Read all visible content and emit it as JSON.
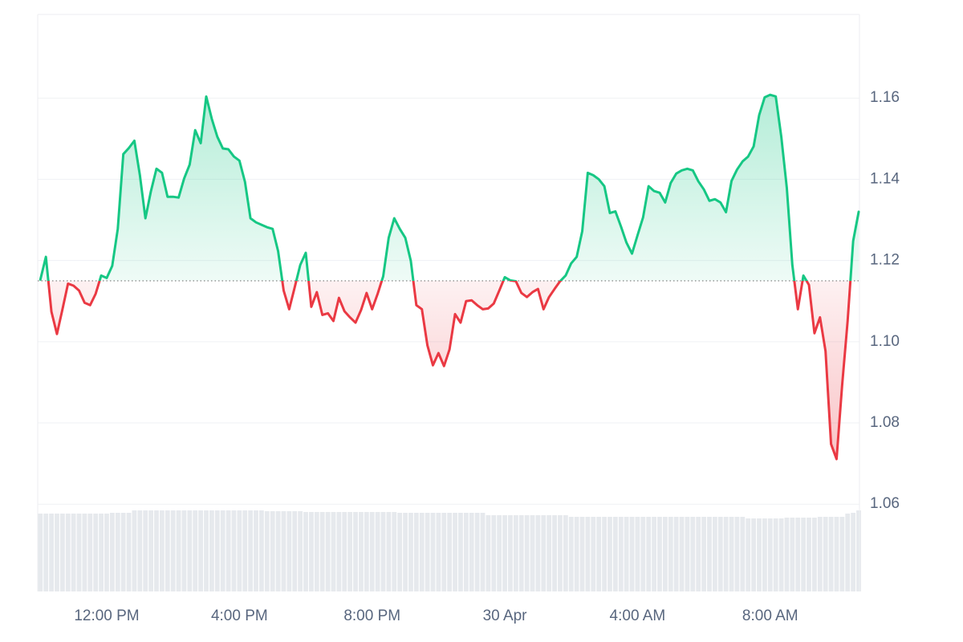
{
  "chart_data": {
    "type": "line",
    "up_color": "#16c784",
    "down_color": "#ea3943",
    "volume_color": "#e6e9ed",
    "baseline": 1.115,
    "ylim": [
      1.0385,
      1.1806
    ],
    "yticks": [
      1.06,
      1.08,
      {
        "value": 1.1,
        "label": "1.10"
      },
      1.12,
      1.14,
      1.16
    ],
    "grid": true,
    "categories": [
      null,
      null,
      null,
      null,
      null,
      null,
      null,
      null,
      null,
      null,
      null,
      null,
      "12:00 PM",
      null,
      null,
      null,
      null,
      null,
      null,
      null,
      null,
      null,
      null,
      null,
      null,
      null,
      null,
      null,
      null,
      null,
      null,
      null,
      null,
      null,
      null,
      null,
      "4:00 PM",
      null,
      null,
      null,
      null,
      null,
      null,
      null,
      null,
      null,
      null,
      null,
      null,
      null,
      null,
      null,
      null,
      null,
      null,
      null,
      null,
      null,
      null,
      null,
      "8:00 PM",
      null,
      null,
      null,
      null,
      null,
      null,
      null,
      null,
      null,
      null,
      null,
      null,
      null,
      null,
      null,
      null,
      null,
      null,
      null,
      null,
      null,
      null,
      null,
      "30 Apr",
      null,
      null,
      null,
      null,
      null,
      null,
      null,
      null,
      null,
      null,
      null,
      null,
      null,
      null,
      null,
      null,
      null,
      null,
      null,
      null,
      null,
      null,
      null,
      "4:00 AM",
      null,
      null,
      null,
      null,
      null,
      null,
      null,
      null,
      null,
      null,
      null,
      null,
      null,
      null,
      null,
      null,
      null,
      null,
      null,
      null,
      null,
      null,
      null,
      "8:00 AM",
      null,
      null,
      null,
      null,
      null,
      null,
      null,
      null,
      null,
      null,
      null,
      null,
      null,
      null,
      null,
      null
    ],
    "values": [
      1.1153,
      1.1209,
      1.1074,
      1.1019,
      1.108,
      1.1143,
      1.1138,
      1.1126,
      1.1096,
      1.109,
      1.1118,
      1.1163,
      1.1157,
      1.1187,
      1.1278,
      1.1462,
      1.1477,
      1.1495,
      1.141,
      1.1304,
      1.1371,
      1.1426,
      1.1416,
      1.1357,
      1.1357,
      1.1355,
      1.1402,
      1.1436,
      1.1521,
      1.1489,
      1.1604,
      1.1549,
      1.1505,
      1.1476,
      1.1474,
      1.1456,
      1.1446,
      1.1394,
      1.1304,
      1.1294,
      1.1288,
      1.1282,
      1.1278,
      1.1223,
      1.1126,
      1.108,
      1.1134,
      1.1189,
      1.1219,
      1.1086,
      1.1122,
      1.1066,
      1.107,
      1.1051,
      1.1108,
      1.1075,
      1.106,
      1.1047,
      1.1078,
      1.112,
      1.108,
      1.1118,
      1.1161,
      1.1256,
      1.1304,
      1.1278,
      1.1256,
      1.1199,
      1.109,
      1.108,
      1.0991,
      1.0942,
      1.0972,
      1.094,
      1.0981,
      1.1068,
      1.1047,
      1.11,
      1.1102,
      1.109,
      1.108,
      1.1082,
      1.1094,
      1.1126,
      1.1159,
      1.1151,
      1.1149,
      1.112,
      1.111,
      1.1122,
      1.113,
      1.108,
      1.111,
      1.113,
      1.1149,
      1.1163,
      1.1193,
      1.1209,
      1.1272,
      1.1416,
      1.141,
      1.14,
      1.1383,
      1.1317,
      1.1321,
      1.1284,
      1.1244,
      1.1217,
      1.1262,
      1.1306,
      1.1383,
      1.1371,
      1.1367,
      1.1343,
      1.1391,
      1.1414,
      1.1422,
      1.1426,
      1.1422,
      1.1395,
      1.1375,
      1.1347,
      1.1351,
      1.1343,
      1.1319,
      1.1396,
      1.1424,
      1.1444,
      1.1456,
      1.1481,
      1.1558,
      1.1602,
      1.1608,
      1.1604,
      1.1505,
      1.1379,
      1.1189,
      1.108,
      1.1163,
      1.114,
      1.1021,
      1.106,
      1.0977,
      1.0748,
      1.0711,
      1.0892,
      1.1051,
      1.1248,
      1.132
    ],
    "volume_lim": [
      0,
      101
    ],
    "volume": [
      97,
      97,
      97,
      97,
      97,
      97,
      97,
      97,
      97,
      97,
      97,
      97,
      97,
      98,
      98,
      98,
      98,
      101,
      101,
      101,
      101,
      101,
      101,
      101,
      101,
      101,
      101,
      101,
      101,
      101,
      101,
      101,
      101,
      101,
      101,
      101,
      101,
      101,
      101,
      101,
      101,
      100,
      100,
      100,
      100,
      100,
      100,
      100,
      99,
      99,
      99,
      99,
      99,
      99,
      99,
      99,
      99,
      99,
      99,
      99,
      99,
      99,
      99,
      99,
      99,
      98,
      98,
      98,
      98,
      98,
      98,
      98,
      98,
      98,
      98,
      98,
      98,
      98,
      98,
      98,
      98,
      95,
      95,
      95,
      95,
      95,
      95,
      95,
      95,
      95,
      95,
      95,
      95,
      95,
      95,
      95,
      93,
      93,
      93,
      93,
      93,
      93,
      93,
      93,
      93,
      93,
      93,
      93,
      93,
      93,
      93,
      93,
      93,
      93,
      93,
      93,
      93,
      93,
      93,
      93,
      93,
      93,
      93,
      93,
      93,
      93,
      93,
      93,
      91,
      91,
      91,
      91,
      91,
      91,
      91,
      92,
      92,
      92,
      92,
      92,
      92,
      93,
      93,
      93,
      93,
      93,
      97,
      98,
      101
    ]
  }
}
